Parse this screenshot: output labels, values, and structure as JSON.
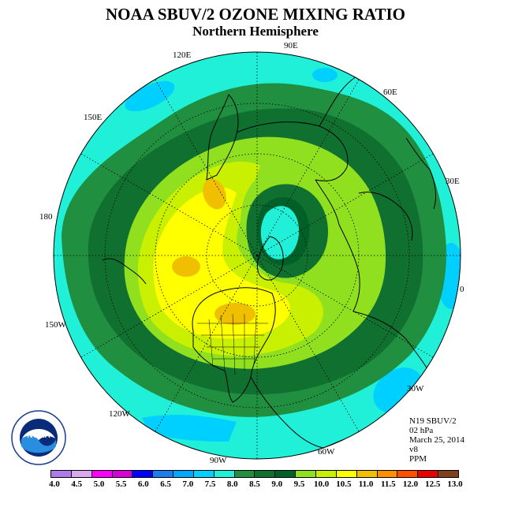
{
  "title": "NOAA SBUV/2 OZONE MIXING RATIO",
  "subtitle": "Northern Hemisphere",
  "longitude_labels": {
    "lon_90e": "90E",
    "lon_60e": "60E",
    "lon_30e": "30E",
    "lon_0": "0",
    "lon_30w": "30W",
    "lon_60w": "60W",
    "lon_90w": "90W",
    "lon_120w": "120W",
    "lon_150w": "150W",
    "lon_180": "180",
    "lon_150e": "150E",
    "lon_120e": "120E"
  },
  "info": {
    "instrument": "N19 SBUV/2",
    "pressure": "02 hPa",
    "date": "March 25, 2014",
    "version": "v8",
    "units": "PPM"
  },
  "colorbar": {
    "ticks": [
      "4.0",
      "4.5",
      "5.0",
      "5.5",
      "6.0",
      "6.5",
      "7.0",
      "7.5",
      "8.0",
      "8.5",
      "9.0",
      "9.5",
      "10.0",
      "10.5",
      "11.0",
      "11.5",
      "12.0",
      "12.5",
      "13.0"
    ],
    "colors": [
      "#b07ae8",
      "#d8a8f0",
      "#ff00ff",
      "#d800d8",
      "#0000ff",
      "#1c7cf0",
      "#00a8ff",
      "#00d0ff",
      "#20f0d8",
      "#209040",
      "#107030",
      "#006028",
      "#90e020",
      "#c8f000",
      "#ffff00",
      "#f0c000",
      "#ff9000",
      "#ff5000",
      "#e80000",
      "#804020"
    ]
  },
  "logo": {
    "text": "NOAA",
    "ring_text": "NATIONAL OCEANIC AND ATMOSPHERIC ADMINISTRATION · U.S. DEPARTMENT OF COMMERCE"
  },
  "colors": {
    "ocean_cyan": "#20f0d8",
    "light_blue": "#00d0ff",
    "green_dark": "#107030",
    "green_mid": "#209040",
    "green_deep": "#006028",
    "lime": "#90e020",
    "yellow_green": "#c8f000",
    "yellow": "#ffff00",
    "orange": "#f0c000"
  }
}
